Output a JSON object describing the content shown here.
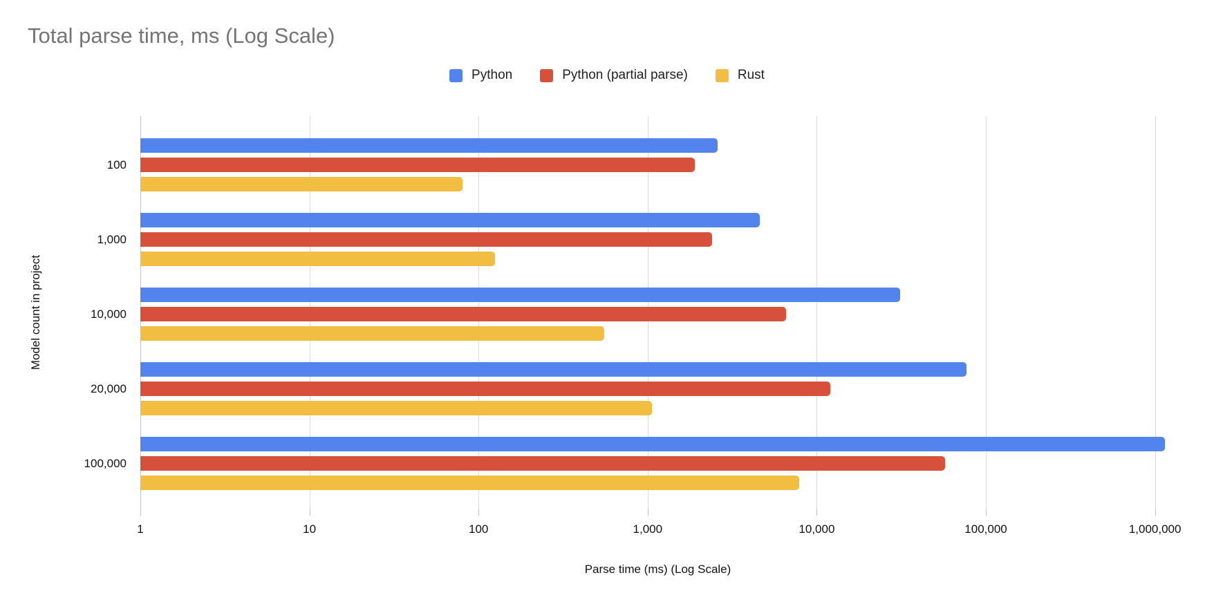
{
  "title": "Total parse time, ms (Log Scale)",
  "legend": [
    {
      "label": "Python",
      "color": "#5383EC"
    },
    {
      "label": "Python (partial parse)",
      "color": "#D6503C"
    },
    {
      "label": "Rust",
      "color": "#F1BE42"
    }
  ],
  "chart_data": {
    "type": "bar",
    "orientation": "horizontal",
    "x_scale": "log",
    "grid": true,
    "legend_position": "top",
    "title": "Total parse time, ms (Log Scale)",
    "xlabel": "Parse time (ms) (Log Scale)",
    "ylabel": "Model count in project",
    "categories": [
      "100",
      "1,000",
      "10,000",
      "20,000",
      "100,000"
    ],
    "series": [
      {
        "name": "Python",
        "color": "#5383EC",
        "values": [
          2600,
          4600,
          31000,
          77000,
          1150000
        ]
      },
      {
        "name": "Python (partial parse)",
        "color": "#D6503C",
        "values": [
          1900,
          2400,
          6600,
          12000,
          57500
        ]
      },
      {
        "name": "Rust",
        "color": "#F1BE42",
        "values": [
          80,
          125,
          555,
          1060,
          7900
        ]
      }
    ],
    "x_ticks": [
      1,
      10,
      100,
      1000,
      10000,
      100000,
      1000000
    ],
    "x_tick_labels": [
      "1",
      "10",
      "100",
      "1,000",
      "10,000",
      "100,000",
      "1,000,000"
    ],
    "x_min": 1,
    "x_axis_log_decades": 6.12
  }
}
